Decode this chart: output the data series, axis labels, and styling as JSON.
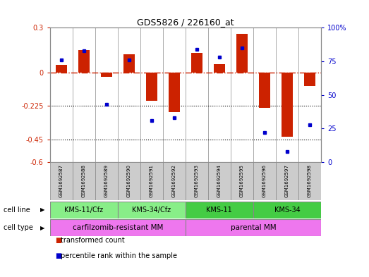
{
  "title": "GDS5826 / 226160_at",
  "samples": [
    "GSM1692587",
    "GSM1692588",
    "GSM1692589",
    "GSM1692590",
    "GSM1692591",
    "GSM1692592",
    "GSM1692593",
    "GSM1692594",
    "GSM1692595",
    "GSM1692596",
    "GSM1692597",
    "GSM1692598"
  ],
  "transformed_count": [
    0.05,
    0.15,
    -0.03,
    0.12,
    -0.19,
    -0.265,
    0.13,
    0.055,
    0.26,
    -0.235,
    -0.43,
    -0.09
  ],
  "percentile_rank": [
    76,
    83,
    43,
    76,
    31,
    33,
    84,
    78,
    85,
    22,
    8,
    28
  ],
  "ylim_left": [
    -0.6,
    0.3
  ],
  "ylim_right": [
    0,
    100
  ],
  "yticks_left": [
    -0.6,
    -0.45,
    -0.225,
    0.0,
    0.3
  ],
  "yticks_left_labels": [
    "-0.6",
    "-0.45",
    "-0.225",
    "0",
    "0.3"
  ],
  "yticks_right": [
    0,
    25,
    50,
    75,
    100
  ],
  "yticks_right_labels": [
    "0",
    "25",
    "50",
    "75",
    "100%"
  ],
  "hline_y": 0.0,
  "dotted_lines": [
    -0.225,
    -0.45
  ],
  "bar_color": "#cc2200",
  "dot_color": "#0000cc",
  "cell_line_groups": [
    {
      "label": "KMS-11/Cfz",
      "start": 0,
      "end": 3,
      "color": "#88ee88"
    },
    {
      "label": "KMS-34/Cfz",
      "start": 3,
      "end": 6,
      "color": "#88ee88"
    },
    {
      "label": "KMS-11",
      "start": 6,
      "end": 9,
      "color": "#44cc44"
    },
    {
      "label": "KMS-34",
      "start": 9,
      "end": 12,
      "color": "#44cc44"
    }
  ],
  "cell_type_groups": [
    {
      "label": "carfilzomib-resistant MM",
      "start": 0,
      "end": 6,
      "color": "#ee77ee"
    },
    {
      "label": "parental MM",
      "start": 6,
      "end": 12,
      "color": "#ee77ee"
    }
  ],
  "legend_items": [
    {
      "label": "transformed count",
      "color": "#cc2200"
    },
    {
      "label": "percentile rank within the sample",
      "color": "#0000cc"
    }
  ],
  "cell_line_label": "cell line",
  "cell_type_label": "cell type",
  "bg_color": "#ffffff",
  "plot_bg": "#ffffff",
  "sample_box_color": "#cccccc",
  "spine_color": "#888888"
}
